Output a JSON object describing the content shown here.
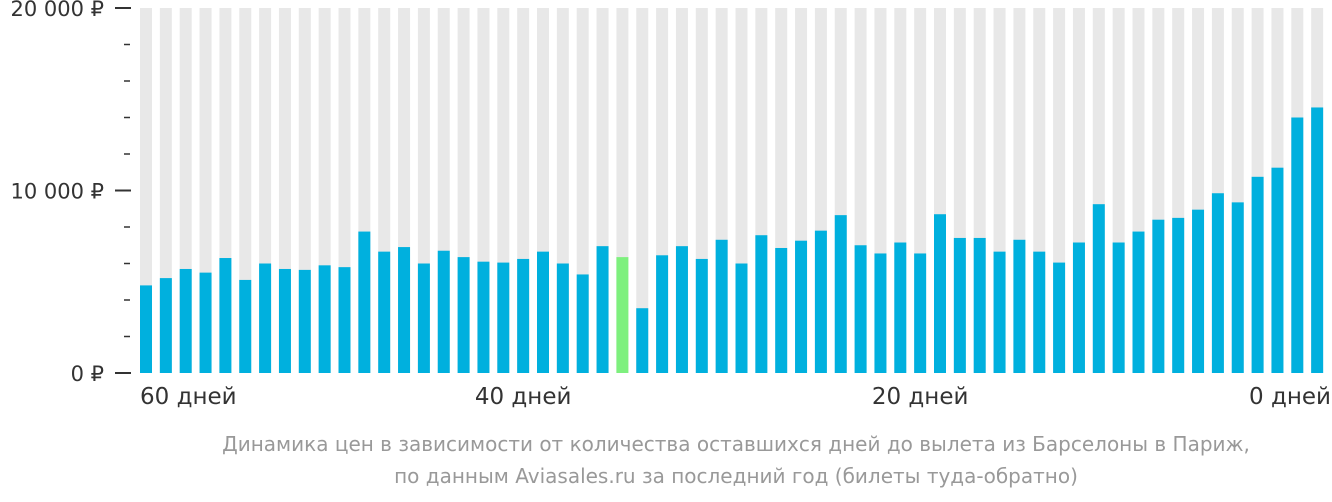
{
  "chart_data": {
    "type": "bar",
    "y_tick_labels": [
      {
        "value": 0,
        "label": "0 ₽"
      },
      {
        "value": 10000,
        "label": "10 000 ₽"
      },
      {
        "value": 20000,
        "label": "20 000 ₽"
      }
    ],
    "x_tick_labels": [
      {
        "days": 60,
        "label": "60 дней"
      },
      {
        "days": 40,
        "label": "40 дней"
      },
      {
        "days": 20,
        "label": "20 дней"
      },
      {
        "days": 0,
        "label": "0 дней"
      }
    ],
    "ylim": [
      0,
      20000
    ],
    "minor_tick_step": 2000,
    "grid": false,
    "colors": {
      "bar": "#00b0de",
      "highlight_bar": "#7ef07e",
      "background_bar": "#e8e8e8",
      "tick": "#333333",
      "caption": "#999999"
    },
    "highlight_day": 35,
    "days_descending_from": 59,
    "values": [
      4800,
      5200,
      5700,
      5500,
      6300,
      5100,
      6000,
      5700,
      5650,
      5900,
      5800,
      7750,
      6650,
      6900,
      6000,
      6700,
      6350,
      6100,
      6050,
      6250,
      6650,
      6000,
      5400,
      6950,
      6350,
      3550,
      6450,
      6950,
      6250,
      7300,
      6000,
      7550,
      6850,
      7250,
      7800,
      8650,
      7000,
      6550,
      7150,
      6550,
      8700,
      7400,
      7400,
      6650,
      7300,
      6650,
      6050,
      7150,
      9250,
      7150,
      7750,
      8400,
      8500,
      8950,
      9850,
      9350,
      10750,
      11250,
      14000,
      14550
    ]
  },
  "caption": {
    "line1": "Динамика цен в зависимости от количества оставшихся дней до вылета из Барселоны в Париж,",
    "line2": "по данным Aviasales.ru за последний год (билеты туда-обратно)"
  }
}
